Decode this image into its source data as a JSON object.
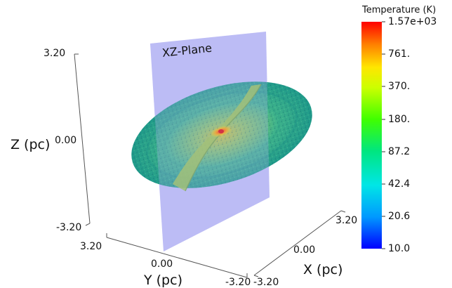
{
  "plane_label": "XZ-Plane",
  "axes": {
    "z": {
      "title": "Z (pc)",
      "ticks": [
        "3.20",
        "0.00",
        "-3.20"
      ]
    },
    "y": {
      "title": "Y (pc)",
      "ticks": [
        "3.20",
        "0.00",
        "-3.20"
      ]
    },
    "x": {
      "title": "X (pc)",
      "ticks": [
        "-3.20",
        "0.00",
        "3.20"
      ]
    }
  },
  "colorbar": {
    "title": "Temperature (K)",
    "ticks": [
      "1.57e+03",
      "761.",
      "370.",
      "180.",
      "87.2",
      "42.4",
      "20.6",
      "10.0"
    ],
    "colors": [
      "#0000ff",
      "#0099ff",
      "#00e6e6",
      "#00e680",
      "#40ff00",
      "#ccff00",
      "#ffe600",
      "#ff8000",
      "#ff0000"
    ]
  },
  "colors": {
    "plane": "#b4b4f5",
    "disk_edge": "#1f9a8a",
    "disk_mid": "#2fb78f",
    "disk_inner": "#8cc463",
    "hot_core": "#ff2a00"
  }
}
